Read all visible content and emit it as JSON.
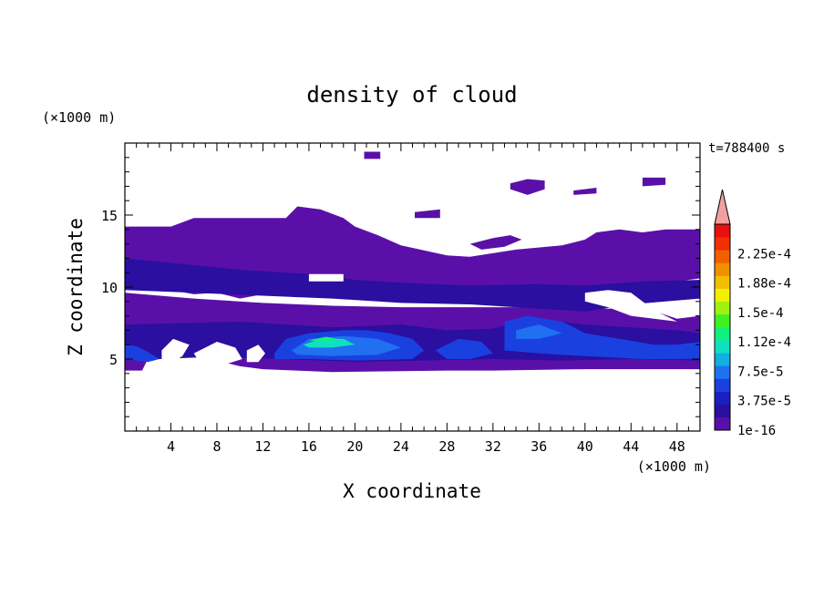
{
  "chart_data": {
    "type": "heatmap",
    "title": "density of cloud",
    "xlabel": "X coordinate",
    "ylabel": "Z coordinate",
    "x_unit": "(×1000 m)",
    "y_unit": "(×1000 m)",
    "time_label": "t=788400 s",
    "xlim": [
      0,
      50
    ],
    "ylim": [
      0,
      20
    ],
    "x_ticks": [
      4,
      8,
      12,
      16,
      20,
      24,
      28,
      32,
      36,
      40,
      44,
      48
    ],
    "y_ticks": [
      5,
      10,
      15
    ],
    "colorbar": {
      "labels": [
        "1e-16",
        "3.75e-5",
        "7.5e-5",
        "1.12e-4",
        "1.5e-4",
        "1.88e-4",
        "2.25e-4"
      ],
      "colors": [
        "#5a10a8",
        "#2a0fa0",
        "#1a1fc0",
        "#1a40e0",
        "#2070f0",
        "#10b0e0",
        "#10e0c0",
        "#10f080",
        "#40f020",
        "#a0f010",
        "#f0f000",
        "#f0c000",
        "#f09000",
        "#f06000",
        "#f03000",
        "#e81010"
      ],
      "extend_color": "#f0a0a0"
    },
    "regions": [
      {
        "level": 0,
        "polygon": [
          [
            0,
            14.2
          ],
          [
            4,
            14.2
          ],
          [
            6,
            14.8
          ],
          [
            14,
            14.8
          ],
          [
            15,
            15.6
          ],
          [
            17,
            15.4
          ],
          [
            19,
            14.8
          ],
          [
            20,
            14.2
          ],
          [
            22,
            13.6
          ],
          [
            24,
            12.9
          ],
          [
            28,
            12.2
          ],
          [
            30,
            12.1
          ],
          [
            34,
            12.6
          ],
          [
            38,
            12.9
          ],
          [
            40,
            13.3
          ],
          [
            41,
            13.8
          ],
          [
            43,
            14.0
          ],
          [
            45,
            13.8
          ],
          [
            47,
            14.0
          ],
          [
            50,
            14.0
          ],
          [
            50,
            10.6
          ],
          [
            47,
            10.3
          ],
          [
            45,
            9.8
          ],
          [
            42,
            10.1
          ],
          [
            40,
            9.3
          ],
          [
            38,
            9.0
          ],
          [
            35,
            9.1
          ],
          [
            33,
            8.8
          ],
          [
            30,
            9.5
          ],
          [
            26,
            9.2
          ],
          [
            24,
            9.0
          ],
          [
            22,
            9.1
          ],
          [
            20,
            9.2
          ],
          [
            18,
            9.4
          ],
          [
            15,
            9.3
          ],
          [
            12,
            9.5
          ],
          [
            10,
            9.2
          ],
          [
            8,
            9.6
          ],
          [
            6,
            9.5
          ],
          [
            4,
            9.8
          ],
          [
            0,
            10.0
          ]
        ]
      },
      {
        "level": 0,
        "polygon": [
          [
            0,
            9.6
          ],
          [
            6,
            9.2
          ],
          [
            12,
            8.9
          ],
          [
            18,
            8.7
          ],
          [
            24,
            8.6
          ],
          [
            30,
            8.6
          ],
          [
            36,
            8.6
          ],
          [
            42,
            8.5
          ],
          [
            45,
            8.6
          ],
          [
            48,
            7.8
          ],
          [
            50,
            8.0
          ],
          [
            50,
            4.3
          ],
          [
            40,
            4.3
          ],
          [
            32,
            4.2
          ],
          [
            28,
            4.2
          ],
          [
            18,
            4.1
          ],
          [
            12,
            4.3
          ],
          [
            10,
            4.5
          ],
          [
            8,
            4.9
          ],
          [
            6,
            5.4
          ],
          [
            5,
            6.4
          ],
          [
            4,
            6.8
          ],
          [
            3,
            6.0
          ],
          [
            2,
            5.0
          ],
          [
            1.5,
            4.2
          ],
          [
            0,
            4.2
          ]
        ]
      },
      {
        "level": 1,
        "polygon": [
          [
            0,
            12.0
          ],
          [
            5,
            11.6
          ],
          [
            10,
            11.2
          ],
          [
            16,
            10.9
          ],
          [
            20,
            10.5
          ],
          [
            24,
            10.3
          ],
          [
            30,
            10.1
          ],
          [
            36,
            10.2
          ],
          [
            40,
            10.1
          ],
          [
            45,
            10.4
          ],
          [
            50,
            10.5
          ],
          [
            50,
            9.2
          ],
          [
            44,
            8.8
          ],
          [
            40,
            8.3
          ],
          [
            36,
            8.5
          ],
          [
            30,
            8.8
          ],
          [
            24,
            8.9
          ],
          [
            18,
            9.2
          ],
          [
            12,
            9.4
          ],
          [
            6,
            9.6
          ],
          [
            0,
            9.8
          ]
        ]
      },
      {
        "level": 1,
        "polygon": [
          [
            0,
            7.4
          ],
          [
            10,
            7.6
          ],
          [
            18,
            7.2
          ],
          [
            24,
            7.4
          ],
          [
            28,
            7.0
          ],
          [
            32,
            7.1
          ],
          [
            34,
            7.6
          ],
          [
            36,
            7.8
          ],
          [
            40,
            7.4
          ],
          [
            44,
            7.2
          ],
          [
            48,
            7.0
          ],
          [
            50,
            6.8
          ],
          [
            50,
            4.9
          ],
          [
            44,
            5.0
          ],
          [
            38,
            4.9
          ],
          [
            32,
            5.0
          ],
          [
            26,
            4.9
          ],
          [
            20,
            4.8
          ],
          [
            14,
            5.0
          ],
          [
            10,
            5.1
          ],
          [
            6,
            5.1
          ],
          [
            3,
            5.0
          ],
          [
            0,
            5.0
          ]
        ]
      },
      {
        "level": 3,
        "polygon": [
          [
            0,
            6.0
          ],
          [
            1,
            5.9
          ],
          [
            2,
            5.5
          ],
          [
            3,
            5.0
          ],
          [
            2,
            4.8
          ],
          [
            1,
            4.9
          ],
          [
            0,
            5.0
          ]
        ]
      },
      {
        "level": 3,
        "polygon": [
          [
            13,
            5.4
          ],
          [
            14,
            6.4
          ],
          [
            16,
            6.8
          ],
          [
            19,
            7.0
          ],
          [
            21,
            7.0
          ],
          [
            23,
            6.8
          ],
          [
            25,
            6.4
          ],
          [
            26,
            5.6
          ],
          [
            25,
            5.0
          ],
          [
            20,
            4.9
          ],
          [
            16,
            5.0
          ],
          [
            13,
            5.0
          ]
        ]
      },
      {
        "level": 3,
        "polygon": [
          [
            27,
            5.6
          ],
          [
            29,
            6.4
          ],
          [
            31,
            6.2
          ],
          [
            32,
            5.4
          ],
          [
            30,
            5.0
          ],
          [
            28,
            5.0
          ]
        ]
      },
      {
        "level": 3,
        "polygon": [
          [
            33,
            7.6
          ],
          [
            35,
            8.0
          ],
          [
            38,
            7.6
          ],
          [
            40,
            6.8
          ],
          [
            43,
            6.4
          ],
          [
            46,
            6.0
          ],
          [
            48,
            6.0
          ],
          [
            50,
            6.2
          ],
          [
            50,
            5.0
          ],
          [
            45,
            5.0
          ],
          [
            40,
            5.2
          ],
          [
            36,
            5.4
          ],
          [
            33,
            5.6
          ]
        ]
      },
      {
        "level": 4,
        "polygon": [
          [
            14.5,
            5.6
          ],
          [
            16,
            6.4
          ],
          [
            19,
            6.6
          ],
          [
            22,
            6.4
          ],
          [
            24,
            5.8
          ],
          [
            22,
            5.3
          ],
          [
            18,
            5.2
          ],
          [
            15,
            5.3
          ]
        ]
      },
      {
        "level": 4,
        "polygon": [
          [
            34,
            7.0
          ],
          [
            36,
            7.4
          ],
          [
            38,
            6.8
          ],
          [
            36,
            6.4
          ],
          [
            34,
            6.4
          ]
        ]
      },
      {
        "level": 6,
        "polygon": [
          [
            15.5,
            6.0
          ],
          [
            17,
            6.4
          ],
          [
            19,
            6.4
          ],
          [
            20,
            6.0
          ],
          [
            18,
            5.8
          ],
          [
            16,
            5.8
          ]
        ]
      },
      {
        "level": 7,
        "polygon": [
          [
            16,
            6.3
          ],
          [
            17.5,
            6.55
          ],
          [
            18.5,
            6.4
          ],
          [
            17.5,
            6.2
          ]
        ]
      },
      {
        "level": 0,
        "polygon": [
          [
            33.5,
            17.2
          ],
          [
            35,
            17.5
          ],
          [
            36.5,
            17.4
          ],
          [
            36.5,
            16.8
          ],
          [
            35,
            16.4
          ],
          [
            33.5,
            16.8
          ]
        ]
      },
      {
        "level": 0,
        "polygon": [
          [
            39,
            16.7
          ],
          [
            41,
            16.9
          ],
          [
            41,
            16.5
          ],
          [
            39,
            16.4
          ]
        ]
      },
      {
        "level": 0,
        "polygon": [
          [
            45,
            17.6
          ],
          [
            47,
            17.6
          ],
          [
            47,
            17.1
          ],
          [
            45,
            17.0
          ]
        ]
      },
      {
        "level": 0,
        "polygon": [
          [
            20.8,
            19.4
          ],
          [
            22.2,
            19.4
          ],
          [
            22.2,
            18.9
          ],
          [
            20.8,
            18.9
          ]
        ]
      },
      {
        "level": 0,
        "polygon": [
          [
            25.2,
            15.2
          ],
          [
            27.4,
            15.4
          ],
          [
            27.4,
            14.8
          ],
          [
            25.2,
            14.8
          ]
        ]
      },
      {
        "level": 0,
        "polygon": [
          [
            30,
            13.0
          ],
          [
            32,
            13.4
          ],
          [
            33.5,
            13.6
          ],
          [
            34.5,
            13.3
          ],
          [
            33,
            12.8
          ],
          [
            31,
            12.6
          ]
        ]
      }
    ],
    "holes": [
      {
        "polygon": [
          [
            16,
            10.4
          ],
          [
            19,
            10.4
          ],
          [
            19,
            10.9
          ],
          [
            16,
            10.9
          ]
        ]
      },
      {
        "polygon": [
          [
            12,
            9.1
          ],
          [
            13.5,
            9.2
          ],
          [
            13.5,
            8.9
          ],
          [
            12,
            8.9
          ]
        ]
      },
      {
        "polygon": [
          [
            40,
            9.6
          ],
          [
            42,
            9.8
          ],
          [
            44,
            9.6
          ],
          [
            46,
            8.4
          ],
          [
            48,
            7.6
          ],
          [
            46,
            7.8
          ],
          [
            44,
            8.0
          ],
          [
            42,
            8.6
          ],
          [
            40,
            9.0
          ]
        ]
      },
      {
        "polygon": [
          [
            3.2,
            5.6
          ],
          [
            4.2,
            6.4
          ],
          [
            5.6,
            6.0
          ],
          [
            5.0,
            5.2
          ],
          [
            3.8,
            4.6
          ],
          [
            3.2,
            5.0
          ]
        ]
      },
      {
        "polygon": [
          [
            6,
            5.4
          ],
          [
            8,
            6.2
          ],
          [
            9.6,
            5.8
          ],
          [
            10.2,
            5.0
          ],
          [
            8.6,
            4.6
          ],
          [
            6.6,
            4.6
          ]
        ]
      },
      {
        "polygon": [
          [
            10.6,
            5.6
          ],
          [
            11.6,
            6.0
          ],
          [
            12.2,
            5.4
          ],
          [
            11.6,
            4.8
          ],
          [
            10.6,
            4.8
          ]
        ]
      }
    ]
  }
}
